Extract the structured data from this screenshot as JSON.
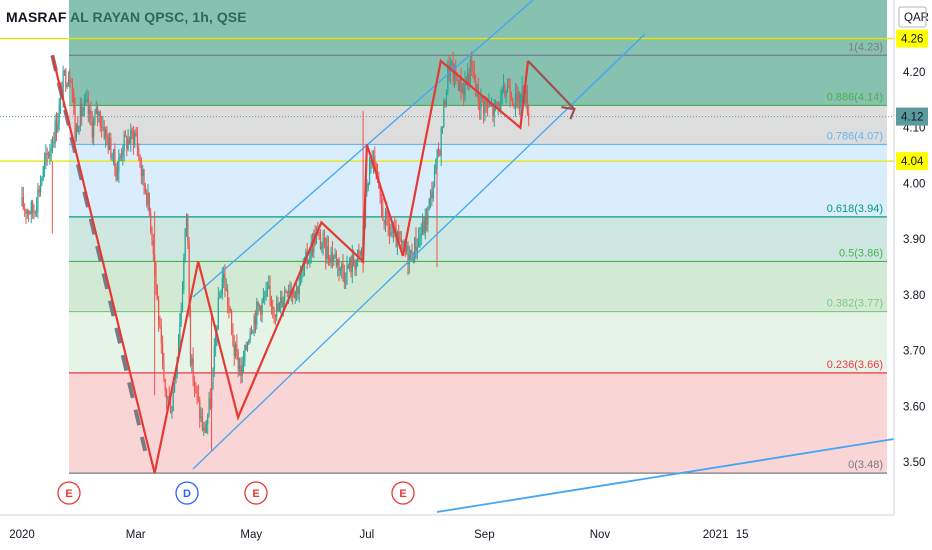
{
  "chart_data": {
    "type": "line",
    "title": "MASRAF AL RAYAN QPSC, 1h, QSE",
    "currency": "QAR",
    "x_ticks": [
      "2020",
      "Mar",
      "May",
      "Jul",
      "Sep",
      "Nov",
      "2021",
      "15"
    ],
    "y_ticks": [
      "3.50",
      "3.60",
      "3.70",
      "3.80",
      "3.90",
      "4.00",
      "4.10",
      "4.20"
    ],
    "ylim": [
      3.455,
      4.305
    ],
    "price_labels": [
      {
        "label": "4.26",
        "value": 4.26,
        "bg": "#ffff00"
      },
      {
        "label": "4.12",
        "value": 4.12,
        "bg": "#5b9ba0"
      },
      {
        "label": "4.04",
        "value": 4.04,
        "bg": "#ffff00"
      }
    ],
    "fib_levels": [
      {
        "ratio": "1",
        "value": 4.23,
        "label": "1(4.23)",
        "color": "#787b86"
      },
      {
        "ratio": "0.886",
        "value": 4.14,
        "label": "0.886(4.14)",
        "color": "#4caf50"
      },
      {
        "ratio": "0.786",
        "value": 4.07,
        "label": "0.786(4.07)",
        "color": "#64b5f6"
      },
      {
        "ratio": "0.618",
        "value": 3.94,
        "label": "0.618(3.94)",
        "color": "#089981"
      },
      {
        "ratio": "0.5",
        "value": 3.86,
        "label": "0.5(3.86)",
        "color": "#4caf50"
      },
      {
        "ratio": "0.382",
        "value": 3.77,
        "label": "0.382(3.77)",
        "color": "#81c784"
      },
      {
        "ratio": "0.236",
        "value": 3.66,
        "label": "0.236(3.66)",
        "color": "#f23645"
      },
      {
        "ratio": "0",
        "value": 3.48,
        "label": "0(3.48)",
        "color": "#787b86"
      }
    ],
    "badges": [
      {
        "letter": "E",
        "kind": "earnings"
      },
      {
        "letter": "D",
        "kind": "dividend"
      },
      {
        "letter": "E",
        "kind": "earnings"
      },
      {
        "letter": "E",
        "kind": "earnings"
      }
    ],
    "wave_path": [
      [
        "Jan 17",
        4.23
      ],
      [
        "Mar 11",
        3.48
      ],
      [
        "Apr 3",
        3.86
      ],
      [
        "Apr 24",
        3.58
      ],
      [
        "Jun 7",
        3.93
      ],
      [
        "Jun 29",
        3.86
      ],
      [
        "Jul 1",
        4.07
      ],
      [
        "Jul 20",
        3.87
      ],
      [
        "Aug 9",
        4.22
      ],
      [
        "Sep 20",
        4.1
      ],
      [
        "Sep 24",
        4.22
      ],
      [
        "Oct 9",
        4.18
      ]
    ],
    "colors": {
      "up": "#26a69a",
      "down": "#ef5350",
      "wave": "#e53935",
      "channel": "#42a5f5",
      "forecast": "#a05050"
    }
  }
}
